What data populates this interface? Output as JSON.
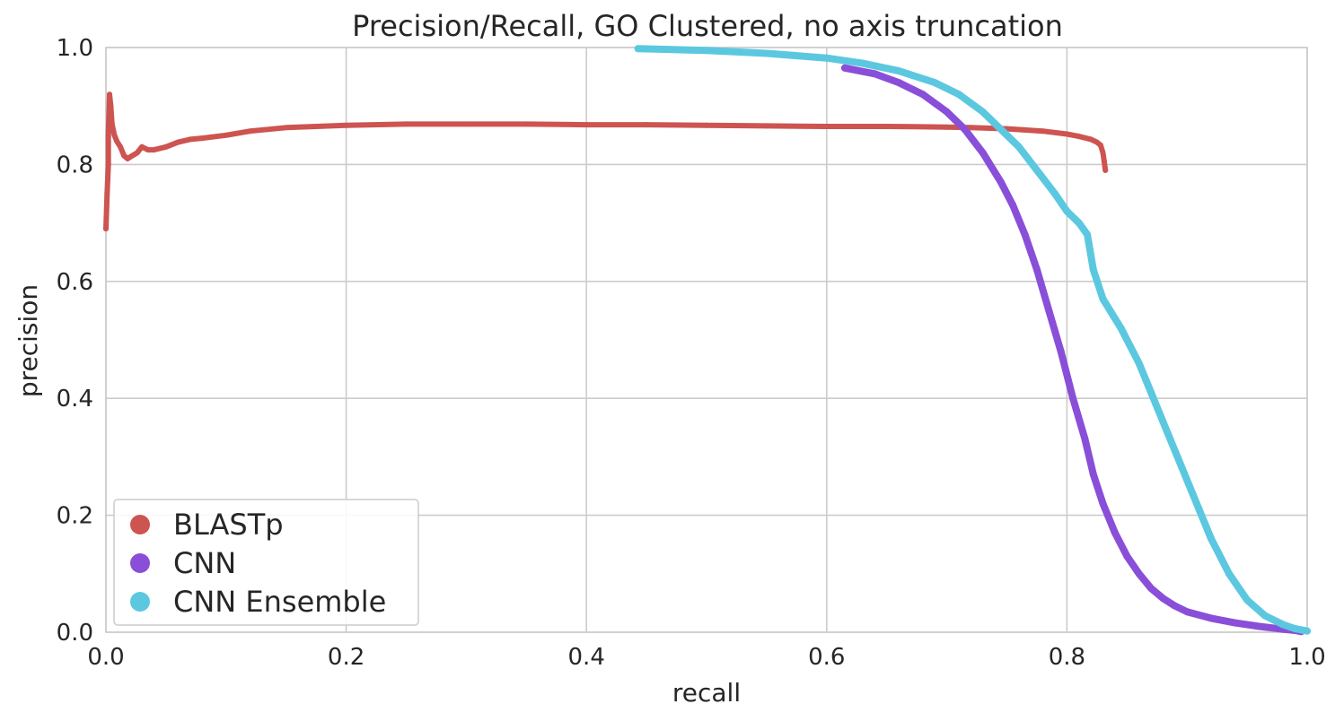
{
  "chart_data": {
    "type": "scatter",
    "title": "Precision/Recall, GO Clustered, no axis truncation",
    "xlabel": "recall",
    "ylabel": "precision",
    "xlim": [
      0.0,
      1.0
    ],
    "ylim": [
      0.0,
      1.0
    ],
    "x_ticks": [
      "0.0",
      "0.2",
      "0.4",
      "0.6",
      "0.8",
      "1.0"
    ],
    "y_ticks": [
      "0.0",
      "0.2",
      "0.4",
      "0.6",
      "0.8",
      "1.0"
    ],
    "grid": true,
    "legend_position": "lower-left",
    "series": [
      {
        "name": "BLASTp",
        "color": "#cd5450",
        "x": [
          0.0,
          0.001,
          0.002,
          0.002,
          0.003,
          0.004,
          0.005,
          0.007,
          0.009,
          0.012,
          0.015,
          0.018,
          0.022,
          0.026,
          0.03,
          0.035,
          0.04,
          0.05,
          0.06,
          0.07,
          0.08,
          0.1,
          0.12,
          0.15,
          0.2,
          0.25,
          0.3,
          0.35,
          0.4,
          0.45,
          0.5,
          0.55,
          0.6,
          0.65,
          0.7,
          0.72,
          0.75,
          0.78,
          0.8,
          0.81,
          0.82,
          0.825,
          0.828,
          0.83,
          0.831,
          0.832
        ],
        "y": [
          0.69,
          0.75,
          0.8,
          0.85,
          0.92,
          0.9,
          0.87,
          0.85,
          0.84,
          0.83,
          0.815,
          0.81,
          0.815,
          0.82,
          0.83,
          0.825,
          0.825,
          0.83,
          0.838,
          0.843,
          0.845,
          0.85,
          0.857,
          0.863,
          0.867,
          0.869,
          0.869,
          0.869,
          0.868,
          0.868,
          0.867,
          0.866,
          0.865,
          0.865,
          0.864,
          0.863,
          0.861,
          0.857,
          0.852,
          0.848,
          0.843,
          0.838,
          0.833,
          0.82,
          0.805,
          0.79
        ]
      },
      {
        "name": "CNN",
        "color": "#8a4fd8",
        "x": [
          0.615,
          0.64,
          0.66,
          0.68,
          0.7,
          0.715,
          0.73,
          0.745,
          0.755,
          0.765,
          0.775,
          0.785,
          0.795,
          0.805,
          0.815,
          0.822,
          0.83,
          0.84,
          0.85,
          0.86,
          0.87,
          0.88,
          0.89,
          0.9,
          0.92,
          0.94,
          0.96,
          0.98,
          0.99,
          0.995
        ],
        "y": [
          0.965,
          0.955,
          0.94,
          0.92,
          0.89,
          0.86,
          0.82,
          0.77,
          0.73,
          0.68,
          0.62,
          0.55,
          0.48,
          0.4,
          0.33,
          0.27,
          0.22,
          0.17,
          0.13,
          0.1,
          0.075,
          0.058,
          0.045,
          0.035,
          0.024,
          0.016,
          0.01,
          0.005,
          0.003,
          0.001
        ]
      },
      {
        "name": "CNN Ensemble",
        "color": "#5bc8e0",
        "x": [
          0.443,
          0.5,
          0.55,
          0.6,
          0.63,
          0.66,
          0.69,
          0.71,
          0.73,
          0.745,
          0.76,
          0.775,
          0.79,
          0.8,
          0.81,
          0.817,
          0.822,
          0.83,
          0.845,
          0.86,
          0.87,
          0.88,
          0.89,
          0.9,
          0.91,
          0.92,
          0.935,
          0.95,
          0.965,
          0.98,
          0.99,
          1.0
        ],
        "y": [
          0.998,
          0.995,
          0.99,
          0.982,
          0.973,
          0.96,
          0.94,
          0.92,
          0.89,
          0.86,
          0.83,
          0.79,
          0.75,
          0.72,
          0.7,
          0.68,
          0.62,
          0.57,
          0.52,
          0.46,
          0.41,
          0.36,
          0.31,
          0.26,
          0.21,
          0.16,
          0.1,
          0.055,
          0.028,
          0.013,
          0.006,
          0.002
        ]
      }
    ]
  }
}
